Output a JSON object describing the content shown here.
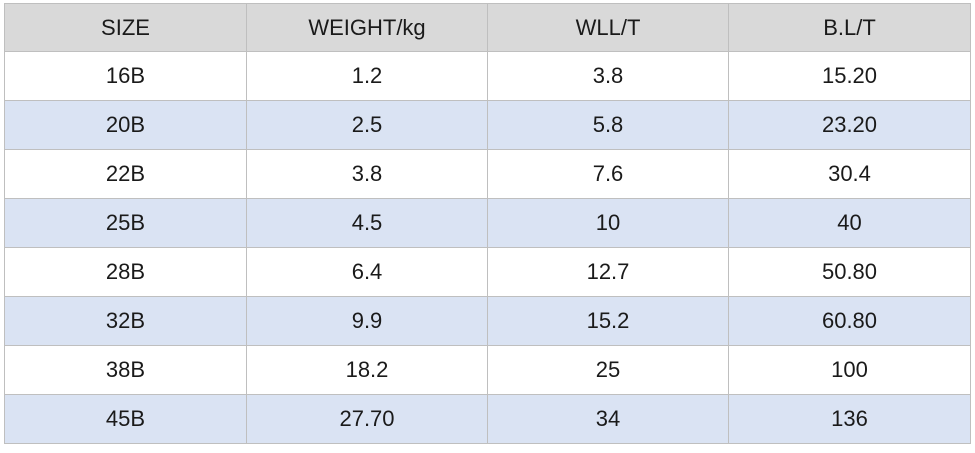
{
  "table": {
    "headers": [
      "SIZE",
      "WEIGHT/kg",
      "WLL/T",
      "B.L/T"
    ],
    "rows": [
      [
        "16B",
        "1.2",
        "3.8",
        "15.20"
      ],
      [
        "20B",
        "2.5",
        "5.8",
        "23.20"
      ],
      [
        "22B",
        "3.8",
        "7.6",
        "30.4"
      ],
      [
        "25B",
        "4.5",
        "10",
        "40"
      ],
      [
        "28B",
        "6.4",
        "12.7",
        "50.80"
      ],
      [
        "32B",
        "9.9",
        "15.2",
        "60.80"
      ],
      [
        "38B",
        "18.2",
        "25",
        "100"
      ],
      [
        "45B",
        "27.70",
        "34",
        "136"
      ]
    ]
  },
  "colors": {
    "header_bg": "#d9d9d9",
    "row_alt_bg": "#dae3f3",
    "row_bg": "#ffffff",
    "border": "#bfbfbf"
  }
}
